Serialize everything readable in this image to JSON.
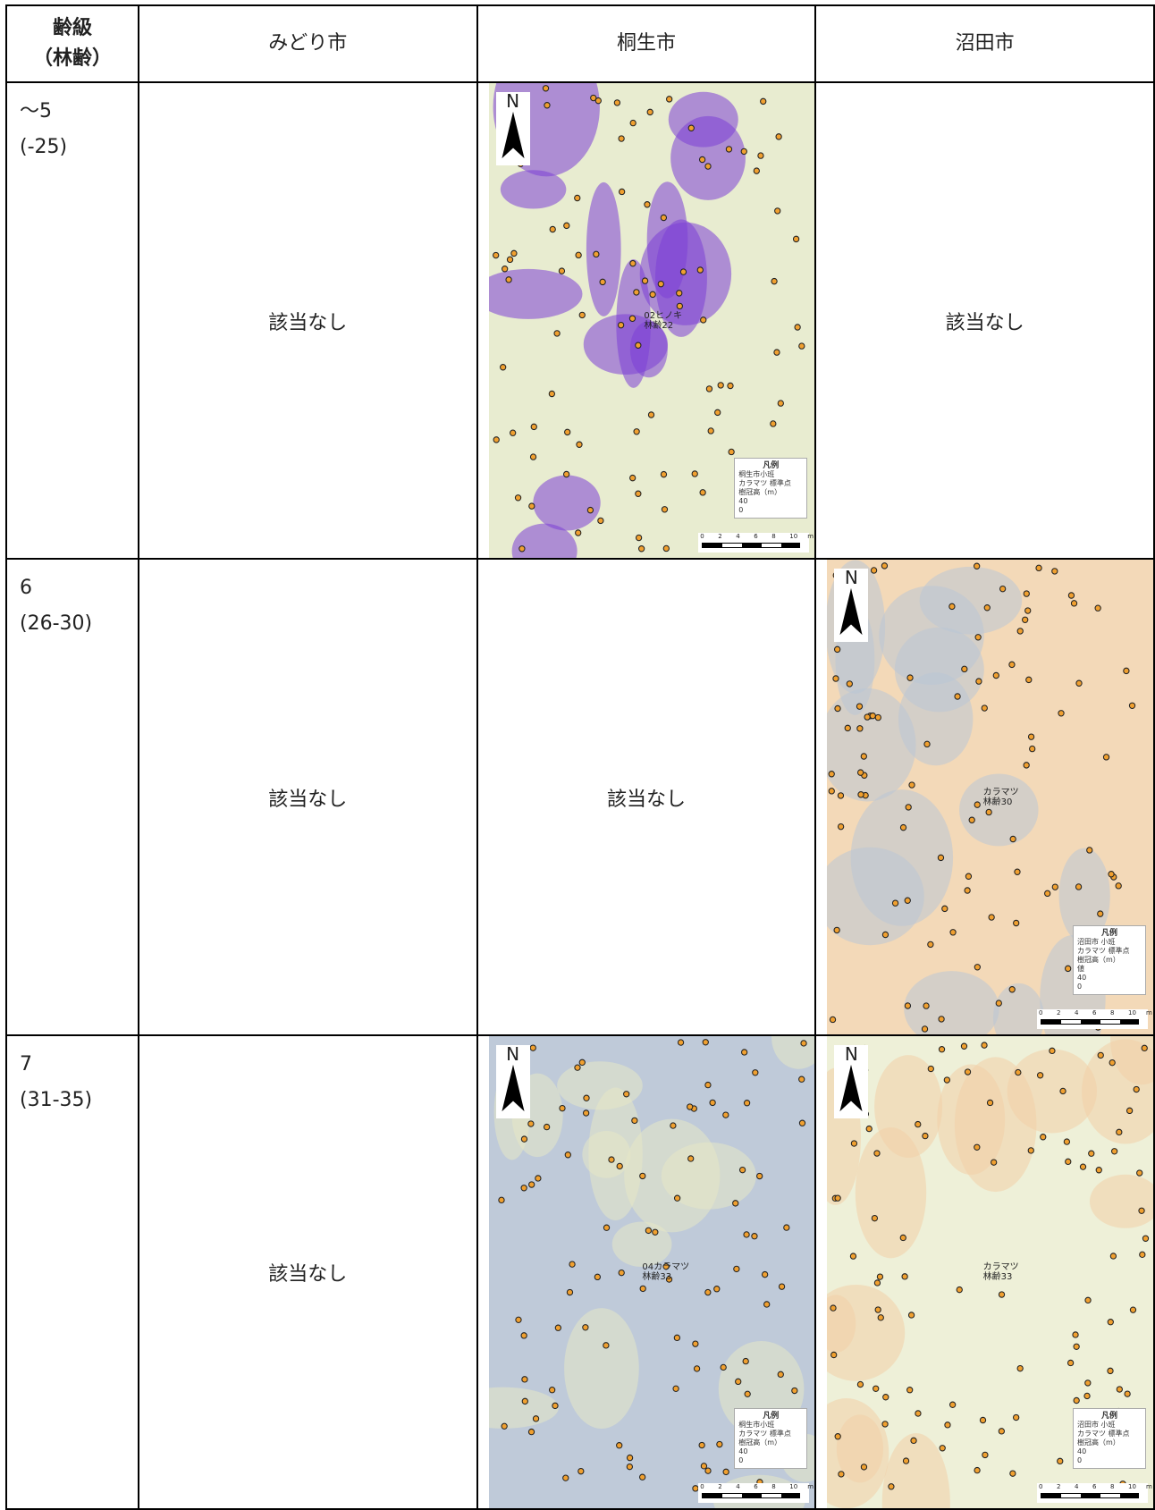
{
  "table": {
    "header": [
      [
        "齢級",
        "（林齢）"
      ],
      "みどり市",
      "桐生市",
      "沼田市"
    ],
    "rows": [
      {
        "age": [
          "〜5",
          "(-25)"
        ],
        "cells": [
          {
            "text": "該当なし"
          },
          {
            "map": {
              "base_color": "#e8ecd0",
              "patch_color": "#7b3fd6",
              "north": "N",
              "label": [
                "02ヒノキ",
                "林齢22"
              ],
              "legend": [
                "凡例",
                "桐生市小班",
                "カラマツ 標準点",
                "樹冠高（m）",
                "40",
                "0"
              ],
              "scale": [
                "0",
                "2",
                "4",
                "6",
                "8",
                "10",
                "m"
              ]
            }
          },
          {
            "text": "該当なし"
          }
        ]
      },
      {
        "age": [
          "6",
          "(26-30)"
        ],
        "cells": [
          {
            "text": "該当なし"
          },
          {
            "text": "該当なし"
          },
          {
            "map": {
              "base_color": "#f3d9b8",
              "patch_color": "#b9c7d6",
              "north": "N",
              "label": [
                "カラマツ",
                "林齢30"
              ],
              "legend": [
                "凡例",
                "沼田市 小班",
                "カラマツ 標準点",
                "樹冠高（m）",
                "値",
                "40",
                "0"
              ],
              "scale": [
                "0",
                "2",
                "4",
                "6",
                "8",
                "10",
                "m"
              ]
            }
          }
        ]
      },
      {
        "age": [
          "7",
          "(31-35)"
        ],
        "cells": [
          {
            "text": "該当なし"
          },
          {
            "map": {
              "base_color": "#bfcad9",
              "patch_color": "#e6e8c6",
              "north": "N",
              "label": [
                "04カラマツ",
                "林齢33"
              ],
              "legend": [
                "凡例",
                "桐生市小班",
                "カラマツ 標準点",
                "樹冠高（m）",
                "40",
                "0"
              ],
              "scale": [
                "0",
                "2",
                "4",
                "6",
                "8",
                "10",
                "m"
              ]
            }
          },
          {
            "map": {
              "base_color": "#eef0d8",
              "patch_color": "#f2cfa8",
              "north": "N",
              "label": [
                "カラマツ",
                "林齢33"
              ],
              "legend": [
                "凡例",
                "沼田市 小班",
                "カラマツ 標準点",
                "樹冠高（m）",
                "40",
                "0"
              ],
              "scale": [
                "0",
                "2",
                "4",
                "6",
                "8",
                "10",
                "m"
              ]
            }
          }
        ]
      }
    ]
  }
}
